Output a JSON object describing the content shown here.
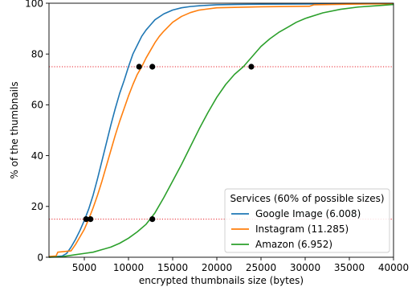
{
  "chart_data": {
    "type": "line",
    "title": "",
    "xlabel": "encrypted thumbnails size (bytes)",
    "ylabel": "% of the thumbnails",
    "xlim": [
      1000,
      40000
    ],
    "ylim": [
      0,
      100
    ],
    "xticks": [
      5000,
      10000,
      15000,
      20000,
      25000,
      30000,
      35000,
      40000
    ],
    "yticks": [
      0,
      20,
      40,
      60,
      80,
      100
    ],
    "legend": {
      "title": "Services (60% of possible sizes)",
      "placement": "lower-right"
    },
    "reference_lines": [
      {
        "y": 75,
        "color": "#e8222a",
        "style": "dotted"
      },
      {
        "y": 15,
        "color": "#e8222a",
        "style": "dotted"
      }
    ],
    "series": [
      {
        "name": "Google Image (6.008)",
        "color": "#1f77b4",
        "x": [
          1000,
          2500,
          3000,
          3500,
          4000,
          4500,
          5000,
          5500,
          6000,
          6500,
          7000,
          7500,
          8000,
          8500,
          9000,
          9500,
          10000,
          10500,
          11000,
          11500,
          12000,
          12500,
          13000,
          14000,
          15000,
          16000,
          17000,
          18000,
          19000,
          20000,
          22000,
          25000,
          30000,
          35000,
          40000
        ],
        "y": [
          0,
          0.5,
          1.5,
          4,
          7,
          10.5,
          14.5,
          19,
          24.5,
          31,
          38,
          45,
          52,
          58.5,
          64.5,
          69.5,
          75,
          80,
          83.5,
          87,
          89.5,
          91.5,
          93.5,
          95.8,
          97.3,
          98.2,
          98.7,
          99,
          99.2,
          99.4,
          99.5,
          99.6,
          99.7,
          99.8,
          99.9
        ]
      },
      {
        "name": "Instagram (11.285)",
        "color": "#ff7f0e",
        "x": [
          1000,
          1800,
          2000,
          3500,
          4000,
          4500,
          5000,
          5500,
          6000,
          6500,
          7000,
          7500,
          8000,
          8500,
          9000,
          9500,
          10000,
          10500,
          11000,
          11500,
          12000,
          12500,
          13000,
          13500,
          14000,
          15000,
          16000,
          17000,
          18000,
          20000,
          25000,
          30500,
          31000,
          35000,
          40000
        ],
        "y": [
          0.3,
          0.5,
          2,
          2.5,
          5,
          8,
          11,
          15,
          19.5,
          24.5,
          30,
          36,
          42,
          48,
          53.5,
          58.5,
          63.5,
          68,
          72,
          75,
          78.5,
          81.5,
          84.5,
          87,
          89,
          92.5,
          94.8,
          96.3,
          97.3,
          98.2,
          98.6,
          98.8,
          99.4,
          99.6,
          99.8
        ]
      },
      {
        "name": "Amazon (6.952)",
        "color": "#2ca02c",
        "x": [
          1000,
          2500,
          3000,
          4000,
          5000,
          6000,
          7000,
          8000,
          9000,
          10000,
          11000,
          12000,
          13000,
          14000,
          15000,
          16000,
          17000,
          18000,
          19000,
          20000,
          21000,
          22000,
          23000,
          24000,
          25000,
          26000,
          27000,
          28000,
          29000,
          30000,
          32000,
          34000,
          36000,
          38000,
          40000
        ],
        "y": [
          0,
          0.2,
          0.5,
          1,
          1.5,
          2,
          3,
          4,
          5.5,
          7.5,
          10,
          13,
          17.5,
          23.5,
          30,
          36.5,
          43.5,
          50.5,
          57,
          63,
          68,
          72,
          75,
          79,
          83,
          86,
          88.5,
          90.5,
          92.5,
          94,
          96.2,
          97.6,
          98.5,
          99,
          99.5
        ]
      }
    ],
    "markers": [
      {
        "x": 11200,
        "y": 75
      },
      {
        "x": 12700,
        "y": 75
      },
      {
        "x": 23900,
        "y": 75
      },
      {
        "x": 5200,
        "y": 15
      },
      {
        "x": 5700,
        "y": 15
      },
      {
        "x": 12700,
        "y": 15
      }
    ]
  }
}
